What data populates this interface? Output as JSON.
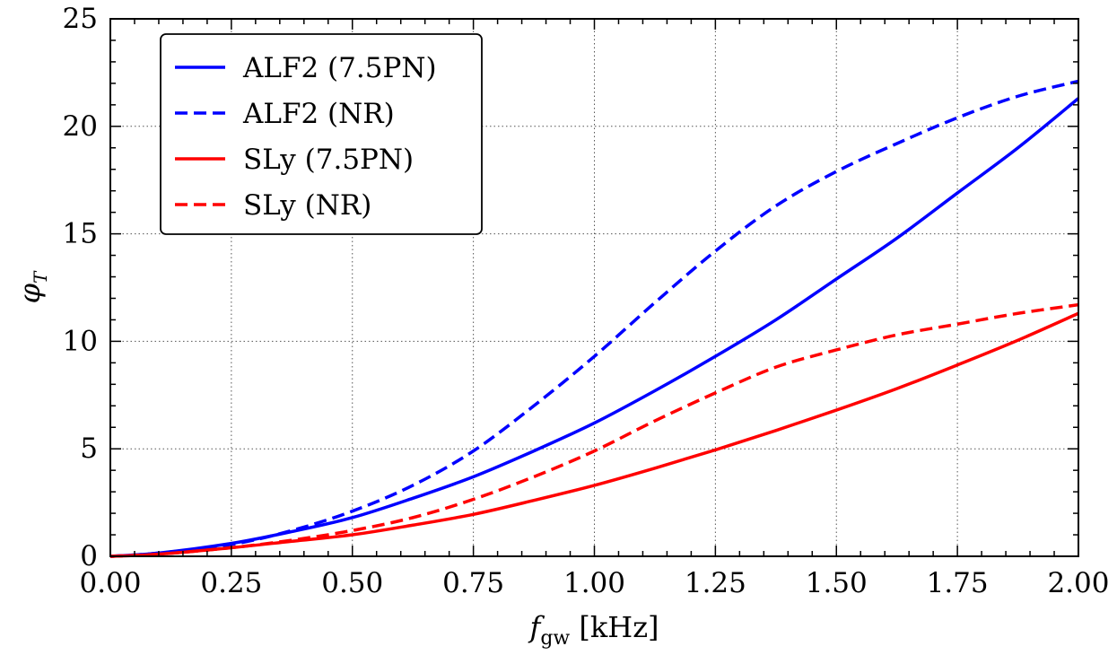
{
  "chart_data": {
    "type": "line",
    "xlabel": {
      "symbol": "f",
      "subscript": "gw",
      "unit": " [kHz]"
    },
    "ylabel": {
      "symbol": "φ",
      "subscript": "T"
    },
    "xlim": [
      0,
      2.0
    ],
    "ylim": [
      0,
      25
    ],
    "x_ticks": [
      "0.00",
      "0.25",
      "0.50",
      "0.75",
      "1.00",
      "1.25",
      "1.50",
      "1.75",
      "2.00"
    ],
    "y_ticks": [
      "0",
      "5",
      "10",
      "15",
      "20",
      "25"
    ],
    "grid": true,
    "legend_position": "top-left",
    "series": [
      {
        "name": "ALF2 (7.5PN)",
        "color": "#0000ff",
        "style": "solid",
        "x": [
          0,
          0.1,
          0.25,
          0.375,
          0.5,
          0.625,
          0.75,
          0.875,
          1.0,
          1.125,
          1.25,
          1.375,
          1.5,
          1.625,
          1.75,
          1.875,
          2.0
        ],
        "y": [
          0,
          0.15,
          0.6,
          1.15,
          1.8,
          2.7,
          3.7,
          4.9,
          6.2,
          7.7,
          9.3,
          11.0,
          12.9,
          14.8,
          16.9,
          19.0,
          21.3
        ]
      },
      {
        "name": "ALF2 (NR)",
        "color": "#0000ff",
        "style": "dashed",
        "x": [
          0,
          0.1,
          0.25,
          0.375,
          0.5,
          0.625,
          0.75,
          0.875,
          1.0,
          1.125,
          1.25,
          1.375,
          1.5,
          1.625,
          1.75,
          1.875,
          2.0
        ],
        "y": [
          0,
          0.15,
          0.55,
          1.2,
          2.1,
          3.3,
          4.9,
          7.0,
          9.3,
          11.8,
          14.2,
          16.3,
          17.9,
          19.2,
          20.4,
          21.4,
          22.1
        ]
      },
      {
        "name": "SLy (7.5PN)",
        "color": "#ff0000",
        "style": "solid",
        "x": [
          0,
          0.1,
          0.25,
          0.375,
          0.5,
          0.625,
          0.75,
          0.875,
          1.0,
          1.125,
          1.25,
          1.375,
          1.5,
          1.625,
          1.75,
          1.875,
          2.0
        ],
        "y": [
          0,
          0.1,
          0.4,
          0.7,
          1.0,
          1.45,
          1.95,
          2.6,
          3.3,
          4.1,
          4.95,
          5.85,
          6.8,
          7.8,
          8.9,
          10.05,
          11.3
        ]
      },
      {
        "name": "SLy (NR)",
        "color": "#ff0000",
        "style": "dashed",
        "x": [
          0,
          0.1,
          0.25,
          0.375,
          0.5,
          0.625,
          0.75,
          0.875,
          1.0,
          1.125,
          1.25,
          1.375,
          1.5,
          1.625,
          1.75,
          1.875,
          2.0
        ],
        "y": [
          0,
          0.1,
          0.4,
          0.75,
          1.2,
          1.8,
          2.65,
          3.7,
          4.9,
          6.3,
          7.6,
          8.8,
          9.6,
          10.3,
          10.8,
          11.3,
          11.7
        ]
      }
    ]
  }
}
